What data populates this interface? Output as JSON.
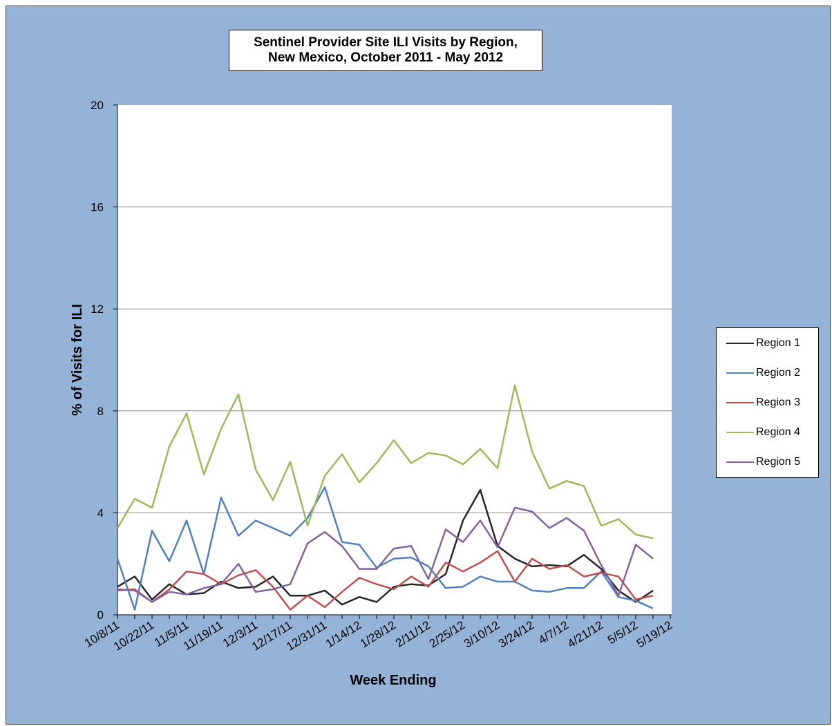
{
  "chart_data": {
    "type": "line",
    "title_lines": [
      "Sentinel Provider Site ILI Visits by Region,",
      "New Mexico,  October 2011 - May 2012"
    ],
    "xlabel": "Week Ending",
    "ylabel": "% of Visits for ILI",
    "ylim": [
      0,
      20
    ],
    "yticks": [
      0,
      4,
      8,
      12,
      16,
      20
    ],
    "grid": true,
    "legend_position": "right",
    "x": [
      "10/8/11",
      "10/15/11",
      "10/22/11",
      "10/29/11",
      "11/5/11",
      "11/12/11",
      "11/19/11",
      "11/26/11",
      "12/3/11",
      "12/10/11",
      "12/17/11",
      "12/24/11",
      "12/31/11",
      "1/7/12",
      "1/14/12",
      "1/21/12",
      "1/28/12",
      "2/4/12",
      "2/11/12",
      "2/18/12",
      "2/25/12",
      "3/3/12",
      "3/10/12",
      "3/17/12",
      "3/24/12",
      "3/31/12",
      "4/7/12",
      "4/14/12",
      "4/21/12",
      "4/28/12",
      "5/5/12",
      "5/12/12",
      "5/19/12"
    ],
    "x_tick_labels": [
      "10/8/11",
      "10/22/11",
      "11/5/11",
      "11/19/11",
      "12/3/11",
      "12/17/11",
      "12/31/11",
      "1/14/12",
      "1/28/12",
      "2/11/12",
      "2/25/12",
      "3/10/12",
      "3/24/12",
      "4/7/12",
      "4/21/12",
      "5/5/12",
      "5/19/12"
    ],
    "series": [
      {
        "name": "Region 1",
        "color": "#262626",
        "values": [
          1.1,
          1.5,
          0.6,
          1.2,
          0.8,
          0.85,
          1.3,
          1.05,
          1.1,
          1.5,
          0.75,
          0.75,
          0.95,
          0.4,
          0.7,
          0.5,
          1.1,
          1.2,
          1.15,
          1.6,
          3.7,
          4.9,
          2.7,
          2.2,
          1.9,
          1.95,
          1.9,
          2.35,
          1.8,
          0.95,
          0.5,
          0.95,
          null
        ]
      },
      {
        "name": "Region 2",
        "color": "#4f81bd",
        "values": [
          2.2,
          0.2,
          3.3,
          2.1,
          3.7,
          1.6,
          4.6,
          3.1,
          3.7,
          3.4,
          3.1,
          3.8,
          5.0,
          2.85,
          2.75,
          1.85,
          2.2,
          2.25,
          1.9,
          1.05,
          1.1,
          1.5,
          1.3,
          1.3,
          0.95,
          0.9,
          1.05,
          1.05,
          1.7,
          0.7,
          0.55,
          0.25,
          null
        ]
      },
      {
        "name": "Region 3",
        "color": "#c0504d",
        "values": [
          0.95,
          1.0,
          0.5,
          1.0,
          1.7,
          1.6,
          1.2,
          1.55,
          1.75,
          1.1,
          0.2,
          0.75,
          0.3,
          0.9,
          1.45,
          1.2,
          1.0,
          1.5,
          1.1,
          2.05,
          1.7,
          2.05,
          2.5,
          1.3,
          2.2,
          1.8,
          1.95,
          1.5,
          1.65,
          1.5,
          0.6,
          0.75,
          null
        ]
      },
      {
        "name": "Region 4",
        "color": "#9bbb59",
        "values": [
          3.4,
          4.55,
          4.2,
          6.6,
          7.9,
          5.5,
          7.3,
          8.65,
          5.7,
          4.5,
          6.0,
          3.5,
          5.45,
          6.3,
          5.2,
          5.95,
          6.85,
          5.95,
          6.35,
          6.25,
          5.9,
          6.5,
          5.75,
          9.0,
          6.4,
          4.95,
          5.25,
          5.05,
          3.5,
          3.75,
          3.15,
          3.0,
          null
        ]
      },
      {
        "name": "Region 5",
        "color": "#8064a2",
        "values": [
          1.0,
          0.95,
          0.5,
          0.9,
          0.8,
          1.05,
          1.2,
          2.0,
          0.9,
          1.0,
          1.2,
          2.8,
          3.25,
          2.7,
          1.8,
          1.8,
          2.6,
          2.7,
          1.4,
          3.35,
          2.85,
          3.7,
          2.65,
          4.2,
          4.05,
          3.4,
          3.8,
          3.3,
          1.95,
          0.75,
          2.75,
          2.2,
          null
        ]
      }
    ]
  }
}
